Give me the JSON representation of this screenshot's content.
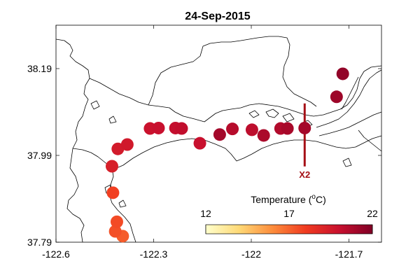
{
  "title": "24-Sep-2015",
  "map": {
    "xlim": [
      -122.6,
      -121.6
    ],
    "ylim": [
      37.79,
      38.29
    ],
    "x_ticks": [
      {
        "value": -122.6,
        "label": "-122.6"
      },
      {
        "value": -122.3,
        "label": "-122.3"
      },
      {
        "value": -122.0,
        "label": "-122"
      },
      {
        "value": -121.7,
        "label": "-121.7"
      }
    ],
    "y_ticks": [
      {
        "value": 37.79,
        "label": "37.79"
      },
      {
        "value": 37.99,
        "label": "37.99"
      },
      {
        "value": 38.19,
        "label": "38.19"
      }
    ]
  },
  "chart_data": {
    "type": "scatter",
    "title": "24-Sep-2015",
    "xlim": [
      -122.6,
      -121.6
    ],
    "ylim": [
      37.79,
      38.29
    ],
    "colorbar": {
      "label": "Temperature (°C)",
      "label_prefix": "Temperature (",
      "label_sup": "o",
      "label_suffix": "C)",
      "min": 12,
      "max": 22,
      "ticks": [
        {
          "value": 12,
          "label": "12"
        },
        {
          "value": 17,
          "label": "17"
        },
        {
          "value": 22,
          "label": "22"
        }
      ],
      "colors": [
        "#ffffcc",
        "#fed976",
        "#fd8d3c",
        "#f03b20",
        "#c8102e",
        "#800026"
      ]
    },
    "points": [
      {
        "lon": -122.395,
        "lat": 37.804,
        "temp": 17.2
      },
      {
        "lon": -122.418,
        "lat": 37.815,
        "temp": 17.5
      },
      {
        "lon": -122.413,
        "lat": 37.837,
        "temp": 17.6
      },
      {
        "lon": -122.425,
        "lat": 37.904,
        "temp": 17.9
      },
      {
        "lon": -122.428,
        "lat": 37.965,
        "temp": 19.3
      },
      {
        "lon": -122.41,
        "lat": 38.005,
        "temp": 19.5
      },
      {
        "lon": -122.381,
        "lat": 38.015,
        "temp": 19.6
      },
      {
        "lon": -122.311,
        "lat": 38.052,
        "temp": 19.9
      },
      {
        "lon": -122.285,
        "lat": 38.053,
        "temp": 20.0
      },
      {
        "lon": -122.233,
        "lat": 38.053,
        "temp": 20.1
      },
      {
        "lon": -122.214,
        "lat": 38.052,
        "temp": 20.2
      },
      {
        "lon": -122.158,
        "lat": 38.018,
        "temp": 20.0
      },
      {
        "lon": -122.097,
        "lat": 38.038,
        "temp": 21.0
      },
      {
        "lon": -122.058,
        "lat": 38.051,
        "temp": 20.5
      },
      {
        "lon": -121.998,
        "lat": 38.049,
        "temp": 20.3
      },
      {
        "lon": -121.962,
        "lat": 38.036,
        "temp": 20.8
      },
      {
        "lon": -121.91,
        "lat": 38.052,
        "temp": 20.6
      },
      {
        "lon": -121.889,
        "lat": 38.052,
        "temp": 20.9
      },
      {
        "lon": -121.836,
        "lat": 38.053,
        "temp": 21.0
      },
      {
        "lon": -121.738,
        "lat": 38.125,
        "temp": 21.2
      },
      {
        "lon": -121.719,
        "lat": 38.178,
        "temp": 21.5
      }
    ]
  },
  "x2_marker": {
    "label": "X2",
    "color": "#a50f15",
    "lon": -121.836,
    "lat_range": [
      38.0,
      38.1
    ]
  }
}
